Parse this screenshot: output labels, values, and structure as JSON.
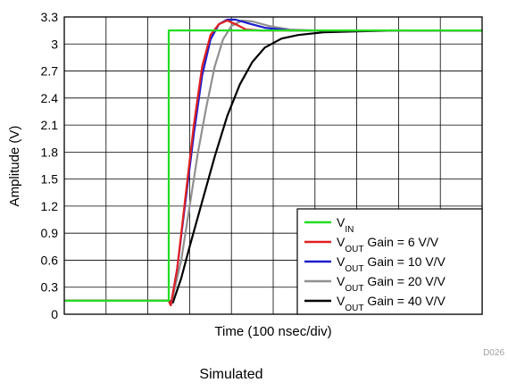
{
  "chart_data": {
    "type": "line",
    "title": "",
    "xlabel": "Time (100 nsec/div)",
    "ylabel": "Amplitude (V)",
    "ylim": [
      0,
      3.3
    ],
    "yticks": [
      0,
      0.3,
      0.6,
      0.9,
      1.2,
      1.5,
      1.8,
      2.1,
      2.4,
      2.7,
      3,
      3.3
    ],
    "ytick_labels": [
      "0",
      "0.3",
      "0.6",
      "0.9",
      "1.2",
      "1.5",
      "1.8",
      "2.1",
      "2.4",
      "2.7",
      "3",
      "3.3"
    ],
    "xlim": [
      0,
      10
    ],
    "x_divisions": 10,
    "grid": true,
    "legend_position": "bottom-right",
    "series": [
      {
        "legend": {
          "base": "V",
          "sub": "IN",
          "tail": ""
        },
        "color": "#22dd22",
        "points": [
          [
            0,
            0.15
          ],
          [
            2.5,
            0.15
          ],
          [
            2.5,
            3.15
          ],
          [
            10,
            3.15
          ]
        ]
      },
      {
        "legend": {
          "base": "V",
          "sub": "OUT",
          "tail": " Gain = 6 V/V"
        },
        "color": "#e02020",
        "points": [
          [
            0,
            0.15
          ],
          [
            2.5,
            0.15
          ],
          [
            2.55,
            0.1
          ],
          [
            2.7,
            0.5
          ],
          [
            2.9,
            1.3
          ],
          [
            3.1,
            2.1
          ],
          [
            3.3,
            2.75
          ],
          [
            3.5,
            3.1
          ],
          [
            3.7,
            3.22
          ],
          [
            3.9,
            3.26
          ],
          [
            4.1,
            3.22
          ],
          [
            4.35,
            3.16
          ],
          [
            4.7,
            3.15
          ],
          [
            10,
            3.15
          ]
        ]
      },
      {
        "legend": {
          "base": "V",
          "sub": "OUT",
          "tail": " Gain = 10 V/V"
        },
        "color": "#1c1ccc",
        "points": [
          [
            0,
            0.15
          ],
          [
            2.5,
            0.15
          ],
          [
            2.55,
            0.1
          ],
          [
            2.7,
            0.5
          ],
          [
            2.9,
            1.25
          ],
          [
            3.1,
            2.0
          ],
          [
            3.3,
            2.65
          ],
          [
            3.5,
            3.05
          ],
          [
            3.7,
            3.22
          ],
          [
            3.9,
            3.27
          ],
          [
            4.1,
            3.27
          ],
          [
            4.4,
            3.23
          ],
          [
            4.8,
            3.18
          ],
          [
            5.4,
            3.15
          ],
          [
            10,
            3.15
          ]
        ]
      },
      {
        "legend": {
          "base": "V",
          "sub": "OUT",
          "tail": " Gain = 20 V/V"
        },
        "color": "#909090",
        "points": [
          [
            0,
            0.15
          ],
          [
            2.5,
            0.15
          ],
          [
            2.55,
            0.1
          ],
          [
            2.8,
            0.6
          ],
          [
            3.0,
            1.2
          ],
          [
            3.2,
            1.8
          ],
          [
            3.4,
            2.3
          ],
          [
            3.6,
            2.75
          ],
          [
            3.8,
            3.05
          ],
          [
            4.0,
            3.2
          ],
          [
            4.25,
            3.26
          ],
          [
            4.5,
            3.25
          ],
          [
            4.9,
            3.2
          ],
          [
            5.4,
            3.16
          ],
          [
            6,
            3.15
          ],
          [
            10,
            3.15
          ]
        ]
      },
      {
        "legend": {
          "base": "V",
          "sub": "OUT",
          "tail": " Gain = 40 V/V"
        },
        "color": "#000000",
        "points": [
          [
            0,
            0.15
          ],
          [
            2.5,
            0.15
          ],
          [
            2.6,
            0.13
          ],
          [
            2.8,
            0.4
          ],
          [
            3.0,
            0.75
          ],
          [
            3.3,
            1.25
          ],
          [
            3.6,
            1.75
          ],
          [
            3.9,
            2.2
          ],
          [
            4.2,
            2.55
          ],
          [
            4.5,
            2.8
          ],
          [
            4.8,
            2.96
          ],
          [
            5.2,
            3.06
          ],
          [
            5.6,
            3.1
          ],
          [
            6.2,
            3.13
          ],
          [
            7,
            3.14
          ],
          [
            8,
            3.15
          ],
          [
            10,
            3.15
          ]
        ]
      }
    ]
  },
  "figure_code": "D026",
  "footer": "Simulated"
}
